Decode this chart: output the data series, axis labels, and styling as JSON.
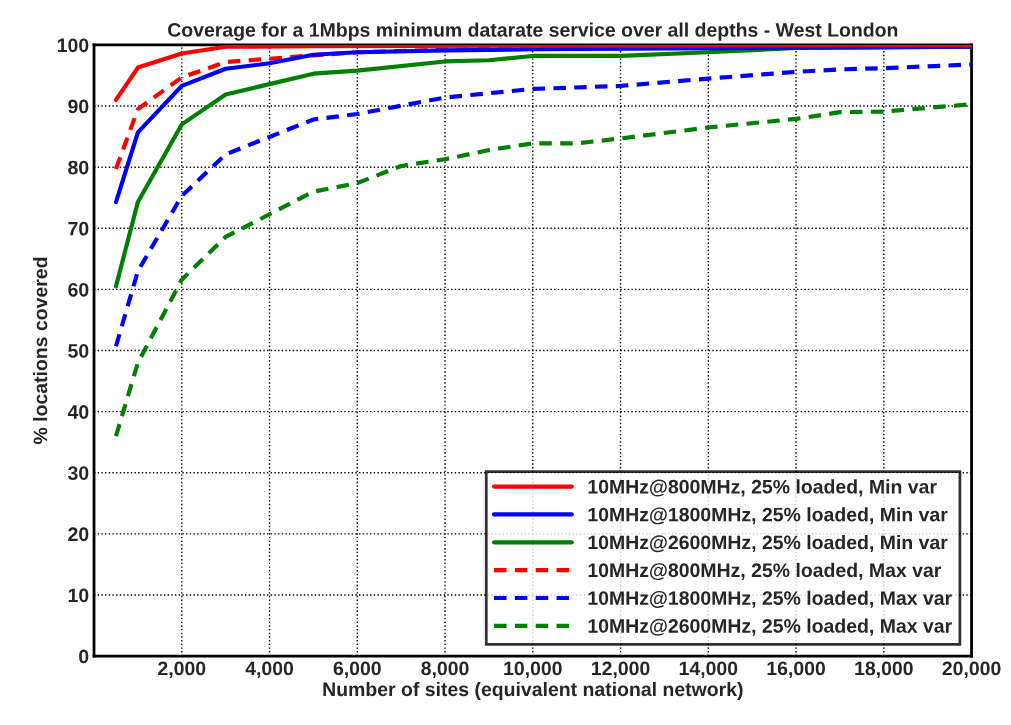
{
  "chart_data": {
    "type": "line",
    "title": "Coverage for a 1Mbps minimum datarate service over all depths - West London",
    "xlabel": "Number of sites (equivalent national network)",
    "ylabel": "% locations covered",
    "xlim": [
      0,
      20000
    ],
    "ylim": [
      0,
      100
    ],
    "xticks": [
      {
        "value": 2000,
        "label": "2,000"
      },
      {
        "value": 4000,
        "label": "4,000"
      },
      {
        "value": 6000,
        "label": "6,000"
      },
      {
        "value": 8000,
        "label": "8,000"
      },
      {
        "value": 10000,
        "label": "10,000"
      },
      {
        "value": 12000,
        "label": "12,000"
      },
      {
        "value": 14000,
        "label": "14,000"
      },
      {
        "value": 16000,
        "label": "16,000"
      },
      {
        "value": 18000,
        "label": "18,000"
      },
      {
        "value": 20000,
        "label": "20,000"
      }
    ],
    "yticks": [
      0,
      10,
      20,
      30,
      40,
      50,
      60,
      70,
      80,
      90,
      100
    ],
    "grid": true,
    "legend": "bottom right",
    "marker": "none",
    "series": [
      {
        "name": "10MHz@800MHz, 25% loaded, Min var",
        "color": "#ff0000",
        "line_style": "solid",
        "x": [
          500,
          1000,
          2000,
          3000,
          5000,
          10000,
          20000
        ],
        "values": [
          91,
          96.3,
          98.6,
          99.7,
          99.8,
          99.9,
          100
        ]
      },
      {
        "name": "10MHz@1800MHz, 25% loaded, Min var",
        "color": "#0000ff",
        "line_style": "solid",
        "x": [
          500,
          1000,
          2000,
          3000,
          4000,
          5000,
          6000,
          8000,
          10000,
          20000
        ],
        "values": [
          74.3,
          85.7,
          93.3,
          96.1,
          97,
          98.4,
          98.8,
          99.1,
          99.3,
          99.7
        ]
      },
      {
        "name": "10MHz@2600MHz, 25% loaded, Min var",
        "color": "#008000",
        "line_style": "solid",
        "x": [
          500,
          1000,
          2000,
          3000,
          5000,
          6000,
          8000,
          9000,
          10000,
          12000,
          14000,
          16000,
          20000
        ],
        "values": [
          60.5,
          74.3,
          87,
          91.9,
          95.3,
          95.8,
          97.3,
          97.5,
          98.2,
          98.2,
          98.8,
          99.5,
          99.7
        ]
      },
      {
        "name": "10MHz@800MHz, 25% loaded, Max var",
        "color": "#ff0000",
        "line_style": "dashed",
        "x": [
          500,
          1000,
          2000,
          3000,
          5000,
          6000,
          8000,
          10000,
          20000
        ],
        "values": [
          79.7,
          89.5,
          94.7,
          97.2,
          98.3,
          98.8,
          99.2,
          99.5,
          99.8
        ]
      },
      {
        "name": "10MHz@1800MHz, 25% loaded, Max var",
        "color": "#0000ff",
        "line_style": "dashed",
        "x": [
          500,
          1000,
          2000,
          3000,
          5000,
          6000,
          8000,
          9000,
          10000,
          12000,
          14000,
          16000,
          17000,
          18000,
          20000
        ],
        "values": [
          50.7,
          63,
          75.3,
          82.1,
          87.8,
          88.7,
          91.4,
          92.1,
          92.8,
          93.3,
          94.5,
          95.6,
          96,
          96.2,
          96.8
        ]
      },
      {
        "name": "10MHz@2600MHz, 25% loaded, Max var",
        "color": "#008000",
        "line_style": "dashed",
        "x": [
          500,
          1000,
          2000,
          3000,
          5000,
          6000,
          7000,
          8000,
          9000,
          10000,
          11000,
          12000,
          14000,
          16000,
          17000,
          18000,
          20000
        ],
        "values": [
          36,
          48,
          61.6,
          68.6,
          76,
          77.4,
          80.2,
          81.3,
          82.8,
          83.9,
          83.9,
          84.7,
          86.5,
          87.9,
          89,
          89.1,
          90.3
        ]
      }
    ]
  }
}
